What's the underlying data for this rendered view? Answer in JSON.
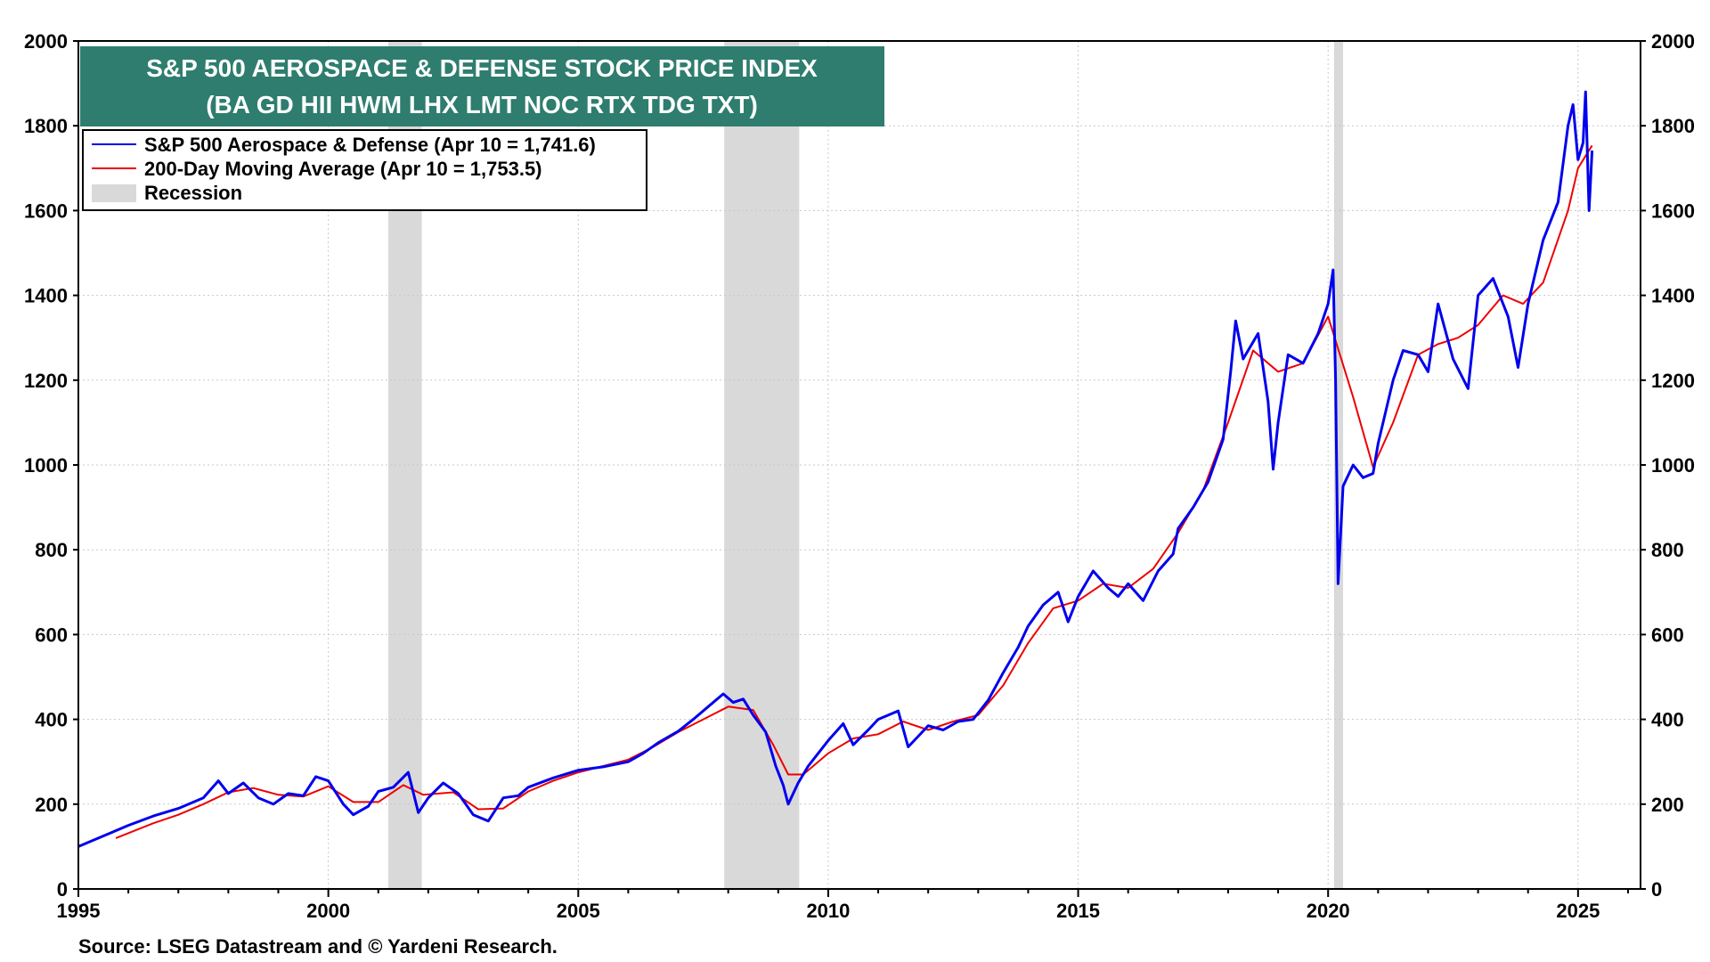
{
  "chart_data": {
    "type": "line",
    "title_line1": "S&P 500 AEROSPACE & DEFENSE STOCK PRICE INDEX",
    "title_line2": "(BA GD HII HWM LHX LMT NOC RTX TDG TXT)",
    "source": "Source: LSEG Datastream and © Yardeni Research.",
    "xlim": [
      1995,
      2026.25
    ],
    "ylim": [
      0,
      2000
    ],
    "grid": true,
    "x_ticks": [
      1995,
      2000,
      2005,
      2010,
      2015,
      2020,
      2025
    ],
    "x_tick_labels": [
      "1995",
      "2000",
      "2005",
      "2010",
      "2015",
      "2020",
      "2025"
    ],
    "y_ticks": [
      0,
      200,
      400,
      600,
      800,
      1000,
      1200,
      1400,
      1600,
      1800,
      2000
    ],
    "y_tick_labels": [
      "0",
      "200",
      "400",
      "600",
      "800",
      "1000",
      "1200",
      "1400",
      "1600",
      "1800",
      "2000"
    ],
    "legend": {
      "position": "top-left",
      "entries": [
        {
          "label": "S&P 500 Aerospace & Defense (Apr 10 = 1,741.6)",
          "color": "#0000ee",
          "kind": "line"
        },
        {
          "label": "200-Day Moving Average (Apr 10 = 1,753.5)",
          "color": "#ee0000",
          "kind": "line"
        },
        {
          "label": "Recession",
          "color": "#d9d9d9",
          "kind": "box"
        }
      ]
    },
    "recessions": [
      [
        2001.2,
        2001.87
      ],
      [
        2007.92,
        2009.42
      ],
      [
        2020.12,
        2020.3
      ]
    ],
    "series": [
      {
        "name": "S&P 500 Aerospace & Defense",
        "color": "#0000ee",
        "points": [
          [
            1995.0,
            100
          ],
          [
            1995.5,
            125
          ],
          [
            1996.0,
            150
          ],
          [
            1996.5,
            172
          ],
          [
            1997.0,
            190
          ],
          [
            1997.5,
            215
          ],
          [
            1997.8,
            255
          ],
          [
            1998.0,
            225
          ],
          [
            1998.3,
            250
          ],
          [
            1998.6,
            215
          ],
          [
            1998.9,
            200
          ],
          [
            1999.2,
            225
          ],
          [
            1999.5,
            220
          ],
          [
            1999.75,
            265
          ],
          [
            2000.0,
            255
          ],
          [
            2000.3,
            200
          ],
          [
            2000.5,
            175
          ],
          [
            2000.8,
            195
          ],
          [
            2001.0,
            230
          ],
          [
            2001.3,
            240
          ],
          [
            2001.6,
            275
          ],
          [
            2001.8,
            180
          ],
          [
            2002.0,
            215
          ],
          [
            2002.3,
            250
          ],
          [
            2002.6,
            225
          ],
          [
            2002.9,
            175
          ],
          [
            2003.2,
            160
          ],
          [
            2003.5,
            215
          ],
          [
            2003.8,
            220
          ],
          [
            2004.0,
            240
          ],
          [
            2004.5,
            262
          ],
          [
            2005.0,
            280
          ],
          [
            2005.5,
            288
          ],
          [
            2006.0,
            300
          ],
          [
            2006.3,
            320
          ],
          [
            2006.6,
            345
          ],
          [
            2007.0,
            372
          ],
          [
            2007.3,
            400
          ],
          [
            2007.6,
            430
          ],
          [
            2007.9,
            460
          ],
          [
            2008.1,
            440
          ],
          [
            2008.3,
            448
          ],
          [
            2008.5,
            410
          ],
          [
            2008.75,
            370
          ],
          [
            2008.95,
            290
          ],
          [
            2009.1,
            245
          ],
          [
            2009.2,
            200
          ],
          [
            2009.4,
            250
          ],
          [
            2009.6,
            290
          ],
          [
            2009.8,
            320
          ],
          [
            2010.0,
            350
          ],
          [
            2010.3,
            390
          ],
          [
            2010.5,
            340
          ],
          [
            2010.8,
            375
          ],
          [
            2011.0,
            400
          ],
          [
            2011.4,
            420
          ],
          [
            2011.6,
            335
          ],
          [
            2011.8,
            360
          ],
          [
            2012.0,
            385
          ],
          [
            2012.3,
            375
          ],
          [
            2012.6,
            395
          ],
          [
            2012.9,
            400
          ],
          [
            2013.2,
            445
          ],
          [
            2013.5,
            510
          ],
          [
            2013.8,
            570
          ],
          [
            2014.0,
            620
          ],
          [
            2014.3,
            670
          ],
          [
            2014.6,
            700
          ],
          [
            2014.8,
            630
          ],
          [
            2015.0,
            690
          ],
          [
            2015.3,
            750
          ],
          [
            2015.6,
            710
          ],
          [
            2015.8,
            690
          ],
          [
            2016.0,
            720
          ],
          [
            2016.3,
            680
          ],
          [
            2016.6,
            750
          ],
          [
            2016.9,
            790
          ],
          [
            2017.0,
            850
          ],
          [
            2017.3,
            900
          ],
          [
            2017.6,
            960
          ],
          [
            2017.9,
            1060
          ],
          [
            2018.05,
            1220
          ],
          [
            2018.15,
            1340
          ],
          [
            2018.3,
            1250
          ],
          [
            2018.6,
            1310
          ],
          [
            2018.8,
            1150
          ],
          [
            2018.9,
            990
          ],
          [
            2019.0,
            1100
          ],
          [
            2019.2,
            1260
          ],
          [
            2019.5,
            1240
          ],
          [
            2019.8,
            1310
          ],
          [
            2020.0,
            1380
          ],
          [
            2020.1,
            1460
          ],
          [
            2020.15,
            1200
          ],
          [
            2020.2,
            720
          ],
          [
            2020.3,
            950
          ],
          [
            2020.5,
            1000
          ],
          [
            2020.7,
            970
          ],
          [
            2020.9,
            980
          ],
          [
            2021.0,
            1050
          ],
          [
            2021.3,
            1200
          ],
          [
            2021.5,
            1270
          ],
          [
            2021.8,
            1260
          ],
          [
            2022.0,
            1220
          ],
          [
            2022.2,
            1380
          ],
          [
            2022.5,
            1250
          ],
          [
            2022.8,
            1180
          ],
          [
            2023.0,
            1400
          ],
          [
            2023.3,
            1440
          ],
          [
            2023.6,
            1350
          ],
          [
            2023.8,
            1230
          ],
          [
            2024.0,
            1380
          ],
          [
            2024.3,
            1530
          ],
          [
            2024.6,
            1620
          ],
          [
            2024.8,
            1800
          ],
          [
            2024.9,
            1850
          ],
          [
            2025.0,
            1720
          ],
          [
            2025.1,
            1760
          ],
          [
            2025.15,
            1880
          ],
          [
            2025.22,
            1600
          ],
          [
            2025.28,
            1741.6
          ]
        ]
      },
      {
        "name": "200-Day Moving Average",
        "color": "#ee0000",
        "points": [
          [
            1995.75,
            120
          ],
          [
            1996.5,
            155
          ],
          [
            1997.0,
            175
          ],
          [
            1997.5,
            200
          ],
          [
            1998.0,
            228
          ],
          [
            1998.5,
            238
          ],
          [
            1999.0,
            222
          ],
          [
            1999.5,
            218
          ],
          [
            2000.0,
            242
          ],
          [
            2000.5,
            205
          ],
          [
            2001.0,
            205
          ],
          [
            2001.5,
            245
          ],
          [
            2001.9,
            222
          ],
          [
            2002.5,
            228
          ],
          [
            2003.0,
            188
          ],
          [
            2003.5,
            190
          ],
          [
            2004.0,
            230
          ],
          [
            2004.5,
            255
          ],
          [
            2005.0,
            275
          ],
          [
            2005.5,
            290
          ],
          [
            2006.0,
            305
          ],
          [
            2006.5,
            335
          ],
          [
            2007.0,
            370
          ],
          [
            2007.5,
            400
          ],
          [
            2008.0,
            430
          ],
          [
            2008.5,
            422
          ],
          [
            2008.9,
            340
          ],
          [
            2009.2,
            270
          ],
          [
            2009.5,
            270
          ],
          [
            2010.0,
            320
          ],
          [
            2010.5,
            355
          ],
          [
            2011.0,
            365
          ],
          [
            2011.5,
            395
          ],
          [
            2012.0,
            375
          ],
          [
            2012.5,
            395
          ],
          [
            2013.0,
            410
          ],
          [
            2013.5,
            480
          ],
          [
            2014.0,
            580
          ],
          [
            2014.5,
            662
          ],
          [
            2015.0,
            680
          ],
          [
            2015.5,
            720
          ],
          [
            2016.0,
            710
          ],
          [
            2016.5,
            755
          ],
          [
            2017.0,
            840
          ],
          [
            2017.5,
            940
          ],
          [
            2018.0,
            1100
          ],
          [
            2018.5,
            1270
          ],
          [
            2019.0,
            1220
          ],
          [
            2019.5,
            1240
          ],
          [
            2020.0,
            1350
          ],
          [
            2020.5,
            1160
          ],
          [
            2020.9,
            995
          ],
          [
            2021.3,
            1100
          ],
          [
            2021.8,
            1260
          ],
          [
            2022.2,
            1285
          ],
          [
            2022.6,
            1300
          ],
          [
            2023.0,
            1330
          ],
          [
            2023.5,
            1400
          ],
          [
            2023.9,
            1380
          ],
          [
            2024.3,
            1430
          ],
          [
            2024.8,
            1600
          ],
          [
            2025.0,
            1700
          ],
          [
            2025.28,
            1753.5
          ]
        ]
      }
    ]
  }
}
